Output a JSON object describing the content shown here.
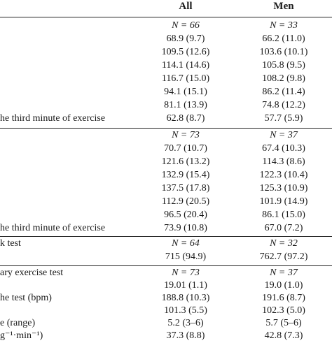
{
  "header": {
    "col_all": "All",
    "col_men": "Men"
  },
  "sections": [
    {
      "n_row": {
        "all": "N = 66",
        "men": "N = 33"
      },
      "rows": [
        {
          "label": "",
          "all": "68.9 (9.7)",
          "men": "66.2 (11.0)"
        },
        {
          "label": "",
          "all": "109.5 (12.6)",
          "men": "103.6 (10.1)"
        },
        {
          "label": "",
          "all": "114.1 (14.6)",
          "men": "105.8 (9.5)"
        },
        {
          "label": "",
          "all": "116.7 (15.0)",
          "men": "108.2 (9.8)"
        },
        {
          "label": "",
          "all": "94.1 (15.1)",
          "men": "86.2 (11.4)"
        },
        {
          "label": "",
          "all": "81.1 (13.9)",
          "men": "74.8 (12.2)"
        },
        {
          "label": "he third minute of exercise",
          "all": "62.8 (8.7)",
          "men": "57.7 (5.9)"
        }
      ]
    },
    {
      "n_row": {
        "all": "N = 73",
        "men": "N = 37"
      },
      "rows": [
        {
          "label": "",
          "all": "70.7 (10.7)",
          "men": "67.4 (10.3)"
        },
        {
          "label": "",
          "all": "121.6 (13.2)",
          "men": "114.3 (8.6)"
        },
        {
          "label": "",
          "all": "132.9 (15.4)",
          "men": "122.3 (10.4)"
        },
        {
          "label": "",
          "all": "137.5 (17.8)",
          "men": "125.3 (10.9)"
        },
        {
          "label": "",
          "all": "112.9 (20.5)",
          "men": "101.9 (14.9)"
        },
        {
          "label": "",
          "all": "96.5 (20.4)",
          "men": "86.1 (15.0)"
        },
        {
          "label": "he third minute of exercise",
          "all": "73.9 (10.8)",
          "men": "67.0 (7.2)"
        }
      ]
    },
    {
      "n_row": {
        "label": "k test",
        "all": "N = 64",
        "men": "N = 32"
      },
      "rows": [
        {
          "label": "",
          "all": "715 (94.9)",
          "men": "762.7 (97.2)"
        }
      ]
    },
    {
      "n_row": {
        "label": "ary exercise test",
        "all": "N = 73",
        "men": "N = 37"
      },
      "rows": [
        {
          "label": "",
          "all": "19.01 (1.1)",
          "men": "19.0 (1.0)"
        },
        {
          "label": "he test (bpm)",
          "all": "188.8 (10.3)",
          "men": "191.6 (8.7)"
        },
        {
          "label": "",
          "all": "101.3 (5.5)",
          "men": "102.3 (5.0)"
        },
        {
          "label": "e (range)",
          "all": "5.2 (3–6)",
          "men": "5.7 (5–6)"
        },
        {
          "label": "g⁻¹·min⁻¹)",
          "all": "37.3 (8.8)",
          "men": "42.8 (7.3)"
        }
      ]
    }
  ]
}
